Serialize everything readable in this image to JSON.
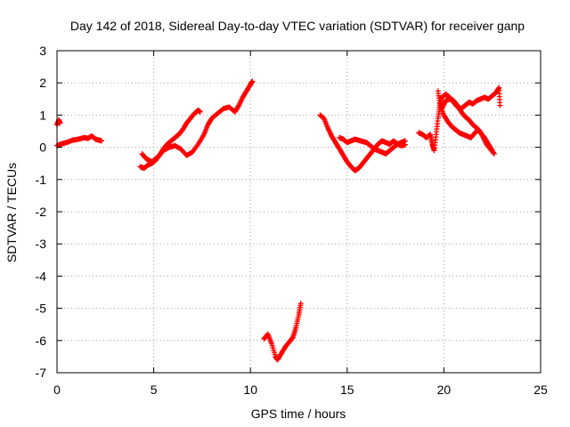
{
  "chart_data": {
    "type": "scatter",
    "title": "Day 142 of 2018, Sidereal Day-to-day VTEC variation (SDTVAR) for receiver ganp",
    "xlabel": "GPS time / hours",
    "ylabel": "SDTVAR / TECUs",
    "xlim": [
      0,
      25
    ],
    "ylim": [
      -7,
      3
    ],
    "xticks": [
      0,
      5,
      10,
      15,
      20,
      25
    ],
    "yticks": [
      -7,
      -6,
      -5,
      -4,
      -3,
      -2,
      -1,
      0,
      1,
      2,
      3
    ],
    "xtick_labels": [
      "0",
      "5",
      "10",
      "15",
      "20",
      "25"
    ],
    "ytick_labels": [
      "-7",
      "-6",
      "-5",
      "-4",
      "-3",
      "-2",
      "-1",
      "0",
      "1",
      "2",
      "3"
    ],
    "grid": true,
    "marker": "plus",
    "series": [
      {
        "name": "SDTVAR",
        "color": "#ff0000",
        "segments": [
          [
            [
              0.0,
              0.7
            ],
            [
              0.1,
              0.85
            ],
            [
              0.15,
              0.75
            ]
          ],
          [
            [
              0.0,
              0.05
            ],
            [
              0.2,
              0.1
            ],
            [
              0.5,
              0.15
            ],
            [
              0.8,
              0.22
            ],
            [
              1.1,
              0.25
            ],
            [
              1.4,
              0.3
            ],
            [
              1.6,
              0.28
            ],
            [
              1.8,
              0.35
            ],
            [
              2.0,
              0.25
            ],
            [
              2.2,
              0.22
            ],
            [
              2.3,
              0.2
            ]
          ],
          [
            [
              4.3,
              -0.6
            ],
            [
              4.5,
              -0.65
            ],
            [
              4.7,
              -0.55
            ],
            [
              4.9,
              -0.5
            ],
            [
              5.1,
              -0.4
            ],
            [
              5.3,
              -0.25
            ],
            [
              5.5,
              -0.05
            ],
            [
              5.7,
              0.1
            ],
            [
              5.9,
              0.2
            ],
            [
              6.1,
              0.3
            ],
            [
              6.3,
              0.4
            ],
            [
              6.5,
              0.55
            ],
            [
              6.7,
              0.75
            ],
            [
              6.9,
              0.9
            ],
            [
              7.1,
              1.05
            ],
            [
              7.3,
              1.15
            ],
            [
              7.4,
              1.1
            ]
          ],
          [
            [
              4.4,
              -0.2
            ],
            [
              4.6,
              -0.35
            ],
            [
              4.9,
              -0.45
            ],
            [
              5.2,
              -0.3
            ],
            [
              5.5,
              -0.1
            ],
            [
              5.8,
              0.0
            ],
            [
              6.1,
              0.05
            ],
            [
              6.4,
              -0.05
            ],
            [
              6.7,
              -0.25
            ],
            [
              7.0,
              -0.15
            ],
            [
              7.3,
              0.1
            ],
            [
              7.6,
              0.4
            ],
            [
              7.8,
              0.7
            ],
            [
              8.0,
              0.9
            ],
            [
              8.3,
              1.05
            ],
            [
              8.6,
              1.2
            ],
            [
              8.9,
              1.25
            ],
            [
              9.2,
              1.1
            ],
            [
              9.4,
              1.3
            ],
            [
              9.6,
              1.55
            ],
            [
              9.8,
              1.75
            ],
            [
              10.0,
              1.95
            ],
            [
              10.1,
              2.05
            ]
          ],
          [
            [
              10.7,
              -5.95
            ],
            [
              10.9,
              -5.8
            ],
            [
              11.1,
              -6.1
            ],
            [
              11.3,
              -6.5
            ],
            [
              11.4,
              -6.6
            ],
            [
              11.6,
              -6.4
            ],
            [
              11.8,
              -6.2
            ],
            [
              12.0,
              -6.05
            ],
            [
              12.2,
              -5.9
            ],
            [
              12.35,
              -5.6
            ],
            [
              12.5,
              -5.2
            ],
            [
              12.6,
              -4.85
            ]
          ],
          [
            [
              13.6,
              1.0
            ],
            [
              13.8,
              0.9
            ],
            [
              14.0,
              0.6
            ],
            [
              14.2,
              0.35
            ],
            [
              14.4,
              0.15
            ],
            [
              14.6,
              -0.05
            ],
            [
              14.8,
              -0.25
            ],
            [
              15.0,
              -0.45
            ],
            [
              15.2,
              -0.6
            ],
            [
              15.4,
              -0.72
            ],
            [
              15.6,
              -0.65
            ],
            [
              15.8,
              -0.5
            ],
            [
              16.0,
              -0.35
            ],
            [
              16.2,
              -0.2
            ],
            [
              16.4,
              -0.05
            ],
            [
              16.6,
              0.1
            ],
            [
              16.8,
              0.2
            ],
            [
              17.0,
              0.15
            ],
            [
              17.2,
              0.1
            ],
            [
              17.4,
              0.2
            ],
            [
              17.6,
              0.1
            ],
            [
              17.8,
              0.05
            ],
            [
              18.0,
              0.08
            ]
          ],
          [
            [
              14.6,
              0.3
            ],
            [
              14.8,
              0.25
            ],
            [
              15.0,
              0.15
            ],
            [
              15.2,
              0.2
            ],
            [
              15.4,
              0.25
            ],
            [
              15.6,
              0.22
            ],
            [
              15.8,
              0.18
            ],
            [
              16.0,
              0.15
            ],
            [
              16.2,
              0.05
            ],
            [
              16.4,
              -0.05
            ],
            [
              16.6,
              -0.1
            ],
            [
              16.8,
              -0.15
            ],
            [
              17.0,
              -0.2
            ],
            [
              17.2,
              -0.1
            ],
            [
              17.4,
              0.0
            ],
            [
              17.6,
              0.1
            ],
            [
              17.8,
              0.15
            ],
            [
              18.0,
              0.2
            ]
          ],
          [
            [
              18.7,
              0.45
            ],
            [
              18.9,
              0.4
            ],
            [
              19.1,
              0.3
            ],
            [
              19.3,
              0.4
            ],
            [
              19.4,
              0.1
            ],
            [
              19.5,
              -0.1
            ],
            [
              19.6,
              0.4
            ],
            [
              19.7,
              0.9
            ],
            [
              19.8,
              1.3
            ],
            [
              19.9,
              1.55
            ],
            [
              20.1,
              1.65
            ],
            [
              20.3,
              1.55
            ],
            [
              20.5,
              1.4
            ],
            [
              20.7,
              1.25
            ],
            [
              20.9,
              1.2
            ],
            [
              21.1,
              1.3
            ],
            [
              21.3,
              1.4
            ],
            [
              21.5,
              1.35
            ],
            [
              21.7,
              1.45
            ],
            [
              21.9,
              1.5
            ],
            [
              22.1,
              1.55
            ],
            [
              22.3,
              1.5
            ],
            [
              22.5,
              1.6
            ],
            [
              22.7,
              1.7
            ],
            [
              22.85,
              1.85
            ],
            [
              22.9,
              1.3
            ]
          ],
          [
            [
              19.7,
              1.75
            ],
            [
              19.8,
              1.3
            ],
            [
              20.0,
              1.0
            ],
            [
              20.2,
              0.8
            ],
            [
              20.4,
              0.65
            ],
            [
              20.6,
              0.55
            ],
            [
              20.8,
              0.45
            ],
            [
              21.0,
              0.4
            ],
            [
              21.2,
              0.35
            ],
            [
              21.4,
              0.3
            ],
            [
              21.6,
              0.45
            ],
            [
              21.8,
              0.55
            ],
            [
              22.0,
              0.35
            ],
            [
              22.2,
              0.1
            ],
            [
              22.4,
              -0.05
            ],
            [
              22.6,
              -0.2
            ]
          ],
          [
            [
              19.9,
              1.2
            ],
            [
              20.1,
              1.45
            ],
            [
              20.3,
              1.5
            ],
            [
              20.5,
              1.45
            ],
            [
              20.7,
              1.3
            ],
            [
              20.9,
              1.1
            ],
            [
              21.1,
              0.95
            ],
            [
              21.3,
              0.85
            ],
            [
              21.5,
              0.7
            ],
            [
              21.7,
              0.6
            ],
            [
              21.9,
              0.45
            ],
            [
              22.1,
              0.3
            ],
            [
              22.3,
              0.1
            ],
            [
              22.5,
              -0.1
            ]
          ]
        ]
      }
    ]
  }
}
